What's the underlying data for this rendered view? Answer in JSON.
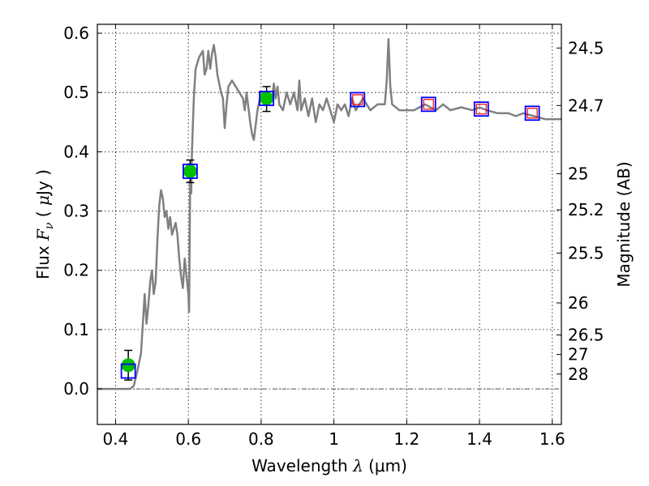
{
  "chart_data": {
    "type": "line",
    "xlabel": "Wavelength  λ (μm)",
    "xlabel_parts": {
      "lead": "Wavelength  ",
      "sym": "λ",
      "tail": " (μm)"
    },
    "ylabel": "Flux  Fν  ( μJy )",
    "ylabel_parts": {
      "lead": "Flux  ",
      "sym": "F",
      "sub": "ν",
      "mid": "  ( ",
      "mu": "μ",
      "tail": "Jy )"
    },
    "ylabel_right": "Magnitude (AB)",
    "xlim": [
      0.35,
      1.625
    ],
    "ylim": [
      -0.06,
      0.615
    ],
    "grid": true,
    "grid_style": "dotted",
    "zero_line": true,
    "x_ticks": [
      {
        "value": 0.4,
        "label": "0.4"
      },
      {
        "value": 0.6,
        "label": "0.6"
      },
      {
        "value": 0.8,
        "label": "0.8"
      },
      {
        "value": 1.0,
        "label": "1"
      },
      {
        "value": 1.2,
        "label": "1.2"
      },
      {
        "value": 1.4,
        "label": "1.4"
      },
      {
        "value": 1.6,
        "label": "1.6"
      }
    ],
    "y_ticks": [
      {
        "value": 0.0,
        "label": "0.0"
      },
      {
        "value": 0.1,
        "label": "0.1"
      },
      {
        "value": 0.2,
        "label": "0.2"
      },
      {
        "value": 0.3,
        "label": "0.3"
      },
      {
        "value": 0.4,
        "label": "0.4"
      },
      {
        "value": 0.5,
        "label": "0.5"
      },
      {
        "value": 0.6,
        "label": "0.6"
      }
    ],
    "right_ticks": [
      {
        "flux": 0.575,
        "label": "24.5"
      },
      {
        "flux": 0.478,
        "label": "24.7"
      },
      {
        "flux": 0.363,
        "label": "25"
      },
      {
        "flux": 0.302,
        "label": "25.2"
      },
      {
        "flux": 0.229,
        "label": "25.5"
      },
      {
        "flux": 0.145,
        "label": "26"
      },
      {
        "flux": 0.091,
        "label": "26.5"
      },
      {
        "flux": 0.058,
        "label": "27"
      },
      {
        "flux": 0.025,
        "label": "28"
      }
    ],
    "series": [
      {
        "type": "line",
        "color": "#808080",
        "points": [
          [
            0.35,
            0.0
          ],
          [
            0.44,
            0.0
          ],
          [
            0.45,
            0.005
          ],
          [
            0.46,
            0.03
          ],
          [
            0.47,
            0.06
          ],
          [
            0.475,
            0.11
          ],
          [
            0.48,
            0.16
          ],
          [
            0.485,
            0.11
          ],
          [
            0.49,
            0.14
          ],
          [
            0.495,
            0.18
          ],
          [
            0.5,
            0.2
          ],
          [
            0.505,
            0.16
          ],
          [
            0.51,
            0.18
          ],
          [
            0.515,
            0.25
          ],
          [
            0.52,
            0.31
          ],
          [
            0.525,
            0.335
          ],
          [
            0.53,
            0.32
          ],
          [
            0.535,
            0.29
          ],
          [
            0.54,
            0.3
          ],
          [
            0.545,
            0.27
          ],
          [
            0.55,
            0.29
          ],
          [
            0.555,
            0.26
          ],
          [
            0.56,
            0.27
          ],
          [
            0.565,
            0.28
          ],
          [
            0.57,
            0.26
          ],
          [
            0.575,
            0.22
          ],
          [
            0.58,
            0.19
          ],
          [
            0.585,
            0.17
          ],
          [
            0.59,
            0.22
          ],
          [
            0.595,
            0.19
          ],
          [
            0.6,
            0.16
          ],
          [
            0.602,
            0.13
          ],
          [
            0.605,
            0.35
          ],
          [
            0.608,
            0.33
          ],
          [
            0.61,
            0.4
          ],
          [
            0.615,
            0.49
          ],
          [
            0.62,
            0.54
          ],
          [
            0.63,
            0.56
          ],
          [
            0.64,
            0.57
          ],
          [
            0.645,
            0.53
          ],
          [
            0.65,
            0.54
          ],
          [
            0.655,
            0.57
          ],
          [
            0.66,
            0.54
          ],
          [
            0.665,
            0.565
          ],
          [
            0.67,
            0.58
          ],
          [
            0.675,
            0.56
          ],
          [
            0.68,
            0.53
          ],
          [
            0.69,
            0.5
          ],
          [
            0.695,
            0.49
          ],
          [
            0.7,
            0.44
          ],
          [
            0.705,
            0.48
          ],
          [
            0.71,
            0.51
          ],
          [
            0.72,
            0.52
          ],
          [
            0.73,
            0.51
          ],
          [
            0.74,
            0.5
          ],
          [
            0.75,
            0.49
          ],
          [
            0.755,
            0.47
          ],
          [
            0.76,
            0.5
          ],
          [
            0.77,
            0.45
          ],
          [
            0.775,
            0.43
          ],
          [
            0.78,
            0.42
          ],
          [
            0.79,
            0.47
          ],
          [
            0.8,
            0.5
          ],
          [
            0.81,
            0.49
          ],
          [
            0.82,
            0.5
          ],
          [
            0.83,
            0.49
          ],
          [
            0.835,
            0.515
          ],
          [
            0.84,
            0.49
          ],
          [
            0.845,
            0.51
          ],
          [
            0.85,
            0.48
          ],
          [
            0.86,
            0.47
          ],
          [
            0.87,
            0.5
          ],
          [
            0.88,
            0.48
          ],
          [
            0.89,
            0.5
          ],
          [
            0.9,
            0.47
          ],
          [
            0.905,
            0.52
          ],
          [
            0.91,
            0.47
          ],
          [
            0.92,
            0.49
          ],
          [
            0.93,
            0.46
          ],
          [
            0.94,
            0.49
          ],
          [
            0.95,
            0.45
          ],
          [
            0.96,
            0.48
          ],
          [
            0.97,
            0.47
          ],
          [
            0.98,
            0.49
          ],
          [
            0.99,
            0.47
          ],
          [
            1.0,
            0.45
          ],
          [
            1.01,
            0.48
          ],
          [
            1.02,
            0.47
          ],
          [
            1.03,
            0.48
          ],
          [
            1.04,
            0.46
          ],
          [
            1.05,
            0.49
          ],
          [
            1.06,
            0.47
          ],
          [
            1.07,
            0.48
          ],
          [
            1.08,
            0.49
          ],
          [
            1.09,
            0.48
          ],
          [
            1.1,
            0.47
          ],
          [
            1.12,
            0.48
          ],
          [
            1.14,
            0.48
          ],
          [
            1.145,
            0.52
          ],
          [
            1.15,
            0.59
          ],
          [
            1.155,
            0.51
          ],
          [
            1.16,
            0.48
          ],
          [
            1.18,
            0.47
          ],
          [
            1.2,
            0.47
          ],
          [
            1.22,
            0.47
          ],
          [
            1.25,
            0.48
          ],
          [
            1.28,
            0.47
          ],
          [
            1.3,
            0.48
          ],
          [
            1.32,
            0.47
          ],
          [
            1.35,
            0.475
          ],
          [
            1.38,
            0.47
          ],
          [
            1.4,
            0.475
          ],
          [
            1.42,
            0.47
          ],
          [
            1.45,
            0.465
          ],
          [
            1.48,
            0.465
          ],
          [
            1.5,
            0.46
          ],
          [
            1.52,
            0.465
          ],
          [
            1.55,
            0.46
          ],
          [
            1.58,
            0.455
          ],
          [
            1.625,
            0.455
          ]
        ]
      },
      {
        "type": "errorbar",
        "color": "#000000",
        "points": [
          {
            "x": 0.435,
            "low": 0.015,
            "high": 0.065
          },
          {
            "x": 0.605,
            "low": 0.348,
            "high": 0.386
          },
          {
            "x": 0.815,
            "low": 0.468,
            "high": 0.51
          }
        ]
      },
      {
        "type": "scatter",
        "marker": "circle",
        "color": "#00c000",
        "points": [
          [
            0.435,
            0.04
          ],
          [
            0.605,
            0.367
          ],
          [
            0.815,
            0.49
          ]
        ]
      },
      {
        "type": "scatter",
        "marker": "square",
        "color": "#0000ff",
        "points": [
          [
            0.435,
            0.03
          ],
          [
            0.605,
            0.367
          ],
          [
            0.815,
            0.49
          ],
          [
            1.065,
            0.488
          ],
          [
            1.26,
            0.48
          ],
          [
            1.405,
            0.472
          ],
          [
            1.545,
            0.465
          ]
        ]
      },
      {
        "type": "scatter",
        "marker": "square",
        "color": "#ff0000",
        "points": [
          [
            1.065,
            0.488
          ],
          [
            1.26,
            0.48
          ],
          [
            1.405,
            0.472
          ],
          [
            1.545,
            0.465
          ]
        ]
      }
    ]
  }
}
